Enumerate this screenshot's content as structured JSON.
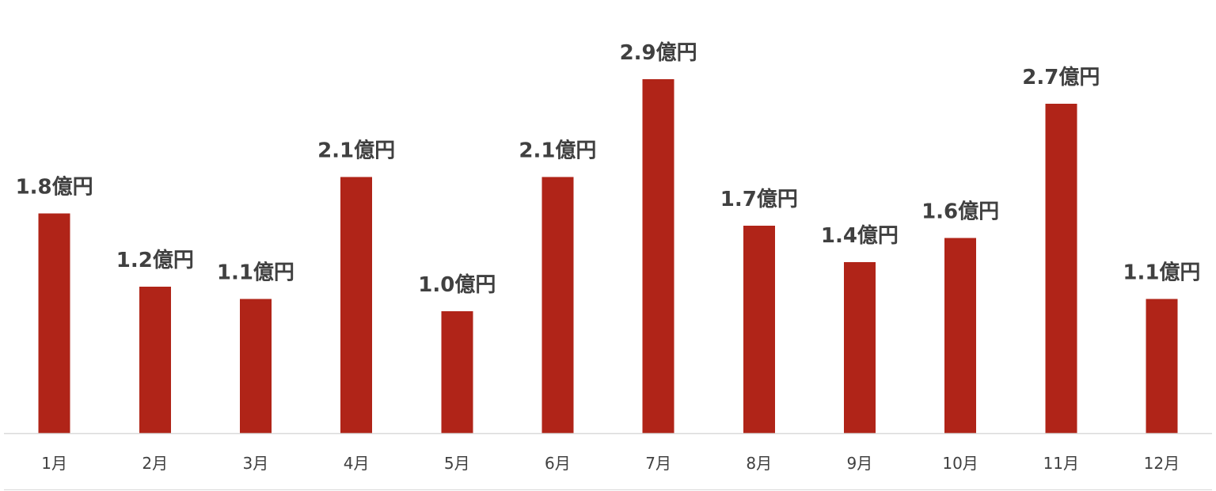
{
  "chart_data": {
    "type": "bar",
    "categories": [
      "1月",
      "2月",
      "3月",
      "4月",
      "5月",
      "6月",
      "7月",
      "8月",
      "9月",
      "10月",
      "11月",
      "12月"
    ],
    "values": [
      1.8,
      1.2,
      1.1,
      2.1,
      1.0,
      2.1,
      2.9,
      1.7,
      1.4,
      1.6,
      2.7,
      1.1
    ],
    "data_labels": [
      "1.8億円",
      "1.2億円",
      "1.1億円",
      "2.1億円",
      "1.0億円",
      "2.1億円",
      "2.9億円",
      "1.7億円",
      "1.4億円",
      "1.6億円",
      "2.7億円",
      "1.1億円"
    ],
    "title": "",
    "xlabel": "",
    "ylabel": "",
    "ylim": [
      0,
      2.9
    ],
    "grid": false,
    "legend": "none",
    "bar_color": "#b02418",
    "axis_color": "#d9d9d9",
    "label_color": "#404040"
  }
}
